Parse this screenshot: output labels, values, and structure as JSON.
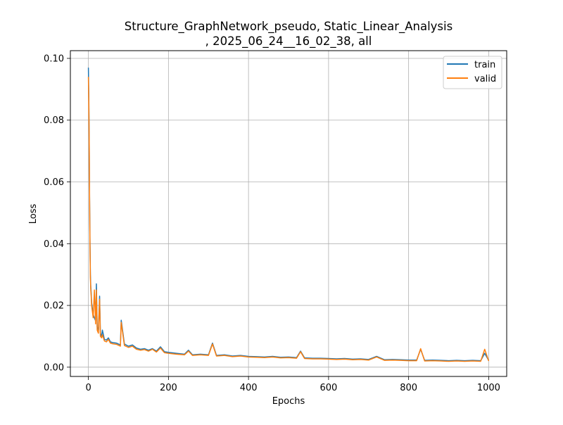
{
  "chart_data": {
    "type": "line",
    "title": "Structure_GraphNetwork_pseudo, Static_Linear_Analysis",
    "subtitle": ", 2025_06_24__16_02_38, all",
    "xlabel": "Epochs",
    "ylabel": "Loss",
    "xlim": [
      -45,
      1045
    ],
    "ylim": [
      -0.003,
      0.1025
    ],
    "xticks": [
      0,
      200,
      400,
      600,
      800,
      1000
    ],
    "xtick_labels": [
      "0",
      "200",
      "400",
      "600",
      "800",
      "1000"
    ],
    "yticks": [
      0.0,
      0.02,
      0.04,
      0.06,
      0.08,
      0.1
    ],
    "ytick_labels": [
      "0.00",
      "0.02",
      "0.04",
      "0.06",
      "0.08",
      "0.10"
    ],
    "grid": true,
    "legend_position": "top-right",
    "series": [
      {
        "name": "train",
        "color": "#1f77b4",
        "x": [
          0,
          1,
          2,
          3,
          4,
          5,
          6,
          7,
          8,
          10,
          12,
          15,
          18,
          20,
          22,
          25,
          28,
          30,
          33,
          35,
          40,
          45,
          50,
          55,
          60,
          70,
          80,
          82,
          90,
          100,
          110,
          120,
          130,
          140,
          150,
          160,
          170,
          180,
          190,
          200,
          220,
          240,
          250,
          260,
          280,
          300,
          310,
          320,
          340,
          360,
          380,
          400,
          420,
          440,
          460,
          480,
          500,
          520,
          530,
          540,
          560,
          580,
          600,
          620,
          640,
          660,
          680,
          700,
          720,
          740,
          760,
          780,
          800,
          820,
          830,
          840,
          860,
          880,
          900,
          920,
          940,
          960,
          980,
          990,
          1000
        ],
        "values": [
          0.097,
          0.088,
          0.074,
          0.055,
          0.04,
          0.03,
          0.026,
          0.024,
          0.021,
          0.019,
          0.017,
          0.016,
          0.015,
          0.027,
          0.013,
          0.012,
          0.023,
          0.011,
          0.01,
          0.012,
          0.009,
          0.0088,
          0.0095,
          0.0082,
          0.008,
          0.0078,
          0.0072,
          0.0152,
          0.0075,
          0.0068,
          0.0072,
          0.0062,
          0.0058,
          0.006,
          0.0055,
          0.006,
          0.0052,
          0.0066,
          0.005,
          0.0048,
          0.0045,
          0.0042,
          0.0055,
          0.004,
          0.0042,
          0.004,
          0.0078,
          0.0038,
          0.004,
          0.0036,
          0.0038,
          0.0035,
          0.0034,
          0.0033,
          0.0035,
          0.0032,
          0.0033,
          0.0031,
          0.0052,
          0.003,
          0.0029,
          0.0029,
          0.0028,
          0.0027,
          0.0028,
          0.0026,
          0.0027,
          0.0025,
          0.0035,
          0.0024,
          0.0025,
          0.0024,
          0.0023,
          0.0023,
          0.0058,
          0.0022,
          0.0023,
          0.0022,
          0.0021,
          0.0022,
          0.0021,
          0.0022,
          0.0021,
          0.0045,
          0.0022
        ]
      },
      {
        "name": "valid",
        "color": "#ff7f0e",
        "x": [
          0,
          1,
          2,
          3,
          4,
          5,
          6,
          7,
          8,
          10,
          12,
          15,
          18,
          20,
          22,
          25,
          28,
          30,
          33,
          35,
          40,
          45,
          50,
          55,
          60,
          70,
          80,
          82,
          90,
          100,
          110,
          120,
          130,
          140,
          150,
          160,
          170,
          180,
          190,
          200,
          220,
          240,
          250,
          260,
          280,
          300,
          310,
          320,
          340,
          360,
          380,
          400,
          420,
          440,
          460,
          480,
          500,
          520,
          530,
          540,
          560,
          580,
          600,
          620,
          640,
          660,
          680,
          700,
          720,
          740,
          760,
          780,
          800,
          820,
          830,
          840,
          860,
          880,
          900,
          920,
          940,
          960,
          980,
          990,
          1000
        ],
        "values": [
          0.094,
          0.086,
          0.073,
          0.054,
          0.039,
          0.029,
          0.025,
          0.023,
          0.02,
          0.018,
          0.016,
          0.025,
          0.014,
          0.025,
          0.012,
          0.011,
          0.022,
          0.01,
          0.0095,
          0.0105,
          0.0085,
          0.0082,
          0.009,
          0.0078,
          0.0076,
          0.0074,
          0.0068,
          0.0145,
          0.007,
          0.0064,
          0.0068,
          0.0058,
          0.0055,
          0.0057,
          0.0052,
          0.0058,
          0.0049,
          0.0062,
          0.0047,
          0.0045,
          0.0042,
          0.004,
          0.0052,
          0.0038,
          0.004,
          0.0038,
          0.0075,
          0.0036,
          0.0038,
          0.0034,
          0.0036,
          0.0033,
          0.0032,
          0.0031,
          0.0033,
          0.003,
          0.0031,
          0.0029,
          0.005,
          0.0028,
          0.0027,
          0.0027,
          0.0026,
          0.0025,
          0.0026,
          0.0024,
          0.0025,
          0.0023,
          0.0033,
          0.0022,
          0.0023,
          0.0022,
          0.0021,
          0.0021,
          0.006,
          0.002,
          0.0021,
          0.002,
          0.0019,
          0.002,
          0.0019,
          0.002,
          0.0019,
          0.0058,
          0.002
        ]
      }
    ]
  }
}
